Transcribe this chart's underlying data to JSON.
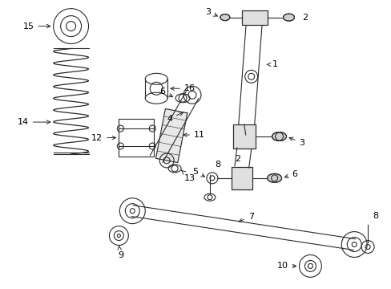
{
  "bg_color": "#ffffff",
  "line_color": "#2a2a2a",
  "label_color": "#000000",
  "figsize": [
    4.89,
    3.6
  ],
  "dpi": 100,
  "xlim": [
    0,
    489
  ],
  "ylim": [
    0,
    360
  ]
}
